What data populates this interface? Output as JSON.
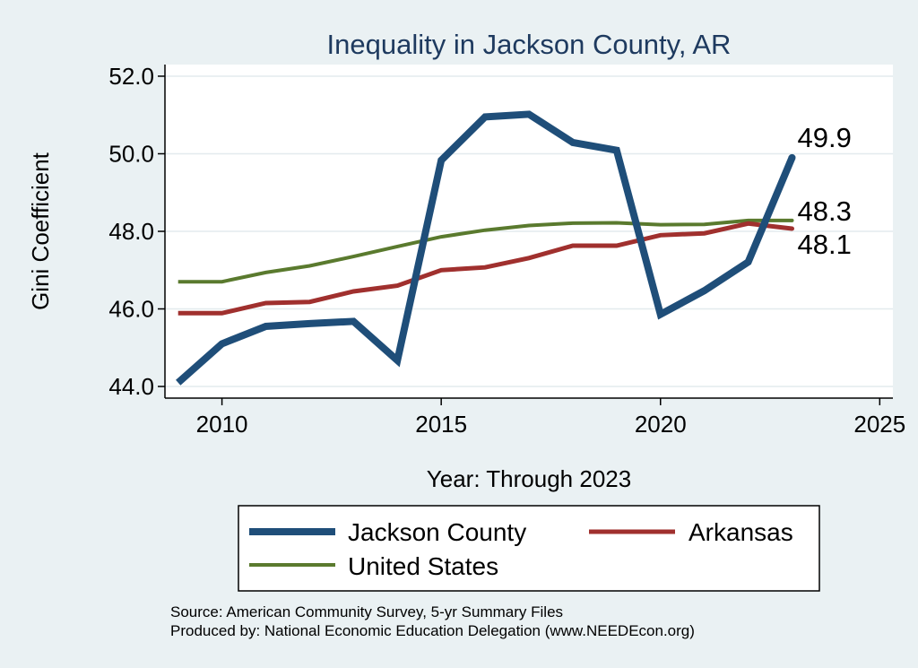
{
  "chart_data": {
    "type": "line",
    "title": "Inequality in Jackson County, AR",
    "xlabel": "Year: Through 2023",
    "ylabel": "Gini Coefficient",
    "xlim": [
      2008.7,
      2025.3
    ],
    "ylim": [
      43.7,
      52.3
    ],
    "x_ticks": [
      2010,
      2015,
      2020,
      2025
    ],
    "x_tick_labels": [
      "2010",
      "2015",
      "2020",
      "2025"
    ],
    "y_ticks": [
      44,
      46,
      48,
      50,
      52
    ],
    "y_tick_labels": [
      "44.0",
      "46.0",
      "48.0",
      "50.0",
      "52.0"
    ],
    "x": [
      2009,
      2010,
      2011,
      2012,
      2013,
      2014,
      2015,
      2016,
      2017,
      2018,
      2019,
      2020,
      2021,
      2022,
      2023
    ],
    "series": [
      {
        "name": "Jackson County",
        "color": "#1f4e79",
        "values": [
          44.1,
          45.1,
          45.55,
          45.62,
          45.68,
          44.67,
          49.83,
          50.95,
          51.02,
          50.29,
          50.09,
          45.86,
          46.47,
          47.21,
          49.9
        ],
        "end_label": "49.9"
      },
      {
        "name": "Arkansas",
        "color": "#a0302e",
        "values": [
          45.89,
          45.89,
          46.15,
          46.18,
          46.45,
          46.6,
          47.0,
          47.07,
          47.31,
          47.63,
          47.63,
          47.9,
          47.95,
          48.2,
          48.07
        ],
        "end_label": "48.1"
      },
      {
        "name": "United States",
        "color": "#5a7a2e",
        "values": [
          46.7,
          46.7,
          46.94,
          47.11,
          47.35,
          47.61,
          47.86,
          48.03,
          48.15,
          48.21,
          48.22,
          48.17,
          48.18,
          48.28,
          48.28
        ],
        "end_label": "48.3"
      }
    ],
    "legend": [
      "Jackson County",
      "Arkansas",
      "United States"
    ],
    "legend_position": "bottom",
    "grid": true
  },
  "source_lines": [
    "Source: American Community Survey, 5-yr Summary Files",
    "Produced by: National Economic Education Delegation (www.NEEDEcon.org)"
  ]
}
